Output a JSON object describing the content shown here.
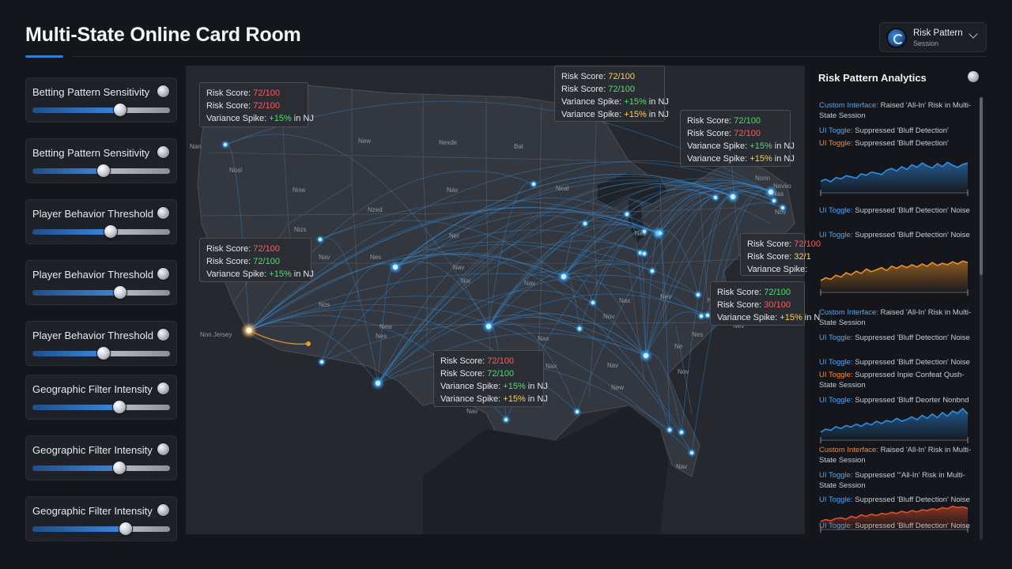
{
  "header": {
    "title": "Multi-State Online Card Room",
    "profile": {
      "title": "Risk Pattern",
      "subtitle": "Session"
    }
  },
  "sliders": [
    {
      "label": "Betting Pattern Sensitivity",
      "value": 0.64
    },
    {
      "label": "Betting Pattern Sensitivity",
      "value": 0.52
    },
    {
      "label": "Player Behavior Threshold",
      "value": 0.57
    },
    {
      "label": "Player Behavior Threshold",
      "value": 0.64
    },
    {
      "label": "Player Behavior Threshold",
      "value": 0.52
    },
    {
      "label": "Geographic Filter Intensity",
      "value": 0.63
    },
    {
      "label": "Geographic Filter Intensity",
      "value": 0.63
    },
    {
      "label": "Geographic Filter Intensity",
      "value": 0.68
    }
  ],
  "map": {
    "state_labels": [
      "New",
      "Nexde",
      "Bat",
      "Nosl",
      "Now",
      "Nzed",
      "Nav",
      "Neal",
      "Nizs",
      "Ner",
      "Nev",
      "Nav",
      "Nav",
      "Nes",
      "Nai",
      "Nos",
      "Nav",
      "Nev",
      "New",
      "Nax",
      "Nov",
      "Nes",
      "Nes",
      "Nax",
      "Nav",
      "Ne",
      "New",
      "Nav",
      "Nov",
      "Nev",
      "Nas",
      "Nov",
      "Nan",
      "Nes",
      "Nax",
      "Nevvo",
      "Nonn",
      "Nanhut",
      "Non Jersey",
      "Nav"
    ],
    "tooltips": [
      {
        "line1_label": "Risk Score:",
        "line1_value": "72/100",
        "line2_label": "Risk Score:",
        "line2_value": "72/100",
        "line3_label": "Variance Spike:",
        "line3_value": "+15%",
        "line3_suffix": "in NJ"
      },
      {
        "line1_label": "Risk Score:",
        "line1_value": "72/100",
        "line2_label": "Risk Score:",
        "line2_value": "72/100",
        "line3_label": "Variance Spike:",
        "line3_value": "+15%",
        "line3_suffix": "in NJ",
        "line4_label": "Variance Spike:",
        "line4_value": "+15%",
        "line4_suffix": "in NJ"
      },
      {
        "line1_label": "Risk Score:",
        "line1_value": "72/100",
        "line2_label": "Risk Score:",
        "line2_value": "72/100",
        "line3_label": "Variance Spike:",
        "line3_value": "+15%",
        "line3_suffix": "in NJ",
        "line4_label": "Variance Spike:",
        "line4_value": "+15%",
        "line4_suffix": "in NJ"
      },
      {
        "line1_label": "Risk Score:",
        "line1_value": "72/100",
        "line2_label": "Risk Score:",
        "line2_value": "72/100",
        "line3_label": "Variance Spike:",
        "line3_value": "+15%",
        "line3_suffix": "in NJ"
      },
      {
        "line1_label": "Risk Score:",
        "line1_value": "72/100",
        "line2_label": "Risk Score:",
        "line2_value": "32/1",
        "line3_label": "Variance Spike:",
        "line3_value": "",
        "line3_suffix": ""
      },
      {
        "line1_label": "Risk Score:",
        "line1_value": "72/100",
        "line2_label": "Risk Score:",
        "line2_value": "30/100",
        "line3_label": "Variance Spike:",
        "line3_value": "+15%",
        "line3_suffix": "in N"
      },
      {
        "line1_label": "Risk Score:",
        "line1_value": "72/100",
        "line2_label": "Risk Score:",
        "line2_value": "72/100",
        "line3_label": "Variance Spike:",
        "line3_value": "+15%",
        "line3_suffix": "in NJ",
        "line4_label": "Variance Spike:",
        "line4_value": "+15%",
        "line4_suffix": "in NJ"
      }
    ]
  },
  "analytics": {
    "title": "Risk Pattern Analytics",
    "entries": [
      {
        "tag": "Custom Interface:",
        "tag_color": "blue",
        "text": "Raised 'All-In' Risk in Multi-State Session"
      },
      {
        "tag": "UI Toggle:",
        "tag_color": "blue",
        "text": "Suppressed 'Bluff Detection'"
      },
      {
        "tag": "UI Toggle:",
        "tag_color": "orange",
        "text": "Suppressed 'Bluff Detection'"
      },
      {
        "tag": "UI Toggle:",
        "tag_color": "blue",
        "text": "Suppressed 'Bluff Detection' Noise"
      },
      {
        "tag": "UI Toggle:",
        "tag_color": "blue",
        "text": "Suppressed 'Bluff Detection' Noise"
      },
      {
        "tag": "Custom Interface:",
        "tag_color": "blue",
        "text": "Raised 'All-In' Risk in Multi-State Session"
      },
      {
        "tag": "UI Toggle:",
        "tag_color": "blue",
        "text": "Suppressed 'Bluff Detection' Noise"
      },
      {
        "tag": "UI Toggle:",
        "tag_color": "blue",
        "text": "Suppressed 'Bluff Detection' Noise"
      },
      {
        "tag": "UI Toggle:",
        "tag_color": "orange",
        "text": "Suppressed Inpie Confeat Qush-State Session"
      },
      {
        "tag": "UI Toggle:",
        "tag_color": "blue",
        "text": "Suppressed 'Bluff Deorter Nonbnd"
      },
      {
        "tag": "Custom Interface:",
        "tag_color": "orange",
        "text": "Raised 'All-In' Risk in Multi-State Session"
      },
      {
        "tag": "UI Toggle:",
        "tag_color": "blue",
        "text": "Suppressed '''All-In' Risk in Multi-State Session"
      },
      {
        "tag": "UI Toggle:",
        "tag_color": "blue",
        "text": "Suppressed 'Bluff Detection' Noise"
      },
      {
        "tag": "UI Toggle:",
        "tag_color": "blue",
        "text": "Suppressed 'Bluff Detection' Noise"
      }
    ],
    "sparklines": [
      {
        "color": "#2f8fe6",
        "values": [
          0.3,
          0.35,
          0.28,
          0.4,
          0.36,
          0.45,
          0.42,
          0.38,
          0.5,
          0.46,
          0.55,
          0.52,
          0.48,
          0.6,
          0.65,
          0.58,
          0.7,
          0.62,
          0.75,
          0.68,
          0.8,
          0.72,
          0.66,
          0.78,
          0.7,
          0.82,
          0.74,
          0.68,
          0.76,
          0.8
        ]
      },
      {
        "color": "#e8902a",
        "values": [
          0.3,
          0.38,
          0.34,
          0.45,
          0.4,
          0.52,
          0.46,
          0.56,
          0.5,
          0.62,
          0.55,
          0.6,
          0.66,
          0.58,
          0.7,
          0.64,
          0.72,
          0.66,
          0.74,
          0.68,
          0.76,
          0.7,
          0.8,
          0.72,
          0.78,
          0.74,
          0.82,
          0.76,
          0.84,
          0.8
        ]
      },
      {
        "color": "#2f8fe6",
        "values": [
          0.2,
          0.28,
          0.25,
          0.35,
          0.3,
          0.38,
          0.34,
          0.42,
          0.36,
          0.45,
          0.4,
          0.5,
          0.44,
          0.52,
          0.48,
          0.58,
          0.5,
          0.55,
          0.62,
          0.54,
          0.66,
          0.58,
          0.7,
          0.6,
          0.74,
          0.64,
          0.78,
          0.72,
          0.85,
          0.7
        ]
      },
      {
        "color": "#e0502a",
        "values": [
          0.2,
          0.25,
          0.22,
          0.28,
          0.3,
          0.26,
          0.34,
          0.3,
          0.38,
          0.34,
          0.4,
          0.36,
          0.42,
          0.4,
          0.45,
          0.42,
          0.48,
          0.44,
          0.5,
          0.46,
          0.52,
          0.5,
          0.55,
          0.52,
          0.58,
          0.55,
          0.62,
          0.58,
          0.6,
          0.56
        ]
      }
    ]
  },
  "colors": {
    "accent": "#2f7fd6",
    "node": "#5ec8ff",
    "warn_node": "#f09a2a",
    "red": "#ff5a5a",
    "green": "#4ee06b",
    "yellow": "#ffd24a"
  }
}
